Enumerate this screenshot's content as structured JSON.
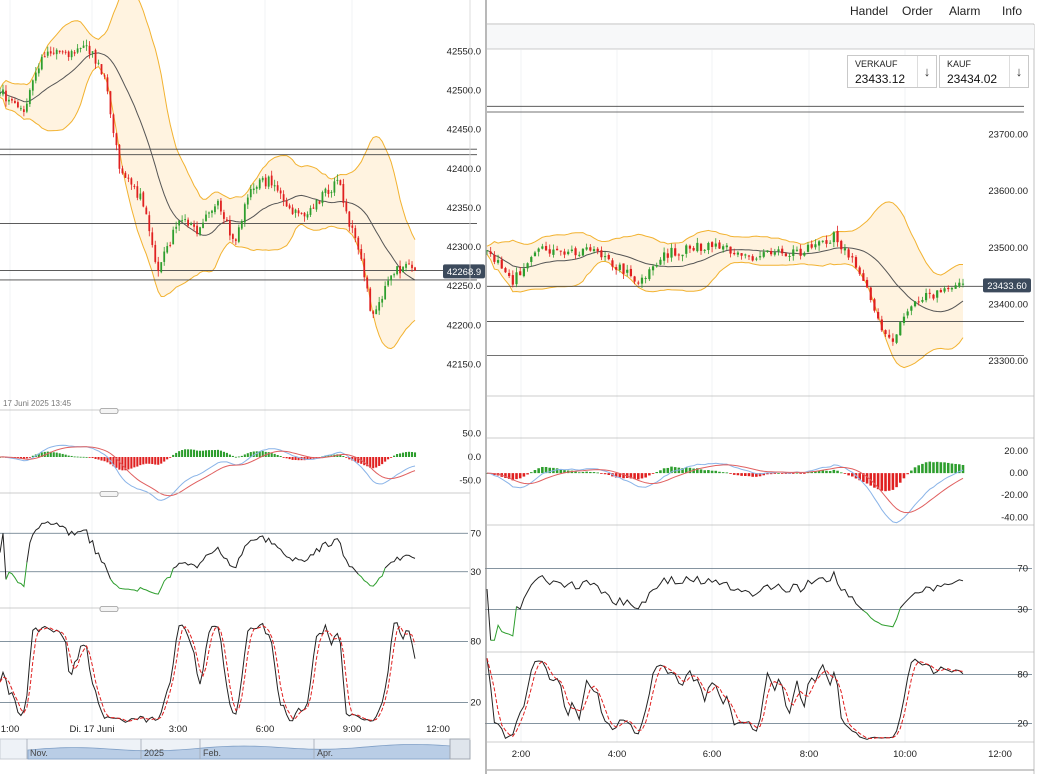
{
  "menu": {
    "trade": "Handel",
    "order": "Order",
    "alarm": "Alarm",
    "info": "Info"
  },
  "quotes": {
    "sell_label": "VERKAUF",
    "sell_value": "23433.12",
    "buy_label": "KAUF",
    "buy_value": "23434.02"
  },
  "colors": {
    "up": "#2e9e2e",
    "down": "#e02020",
    "band": "#f2b230",
    "band_fill": "#fff3e0",
    "ma": "#555555",
    "macd": "#8ab4e8",
    "signal": "#e06060",
    "price_tag": "#3c4a5c"
  },
  "chart_data": [
    {
      "type": "candlestick",
      "panel": "left-price",
      "title": "",
      "timestamp_label": "17 Juni 2025 13:45",
      "y_ticks": [
        "42550.0",
        "42500.0",
        "42450.0",
        "42400.0",
        "42350.0",
        "42300.0",
        "42250.0",
        "42200.0",
        "42150.0"
      ],
      "ylim": [
        42120,
        42590
      ],
      "current_price": "42268.9",
      "horizontal_levels": [
        42425,
        42418,
        42330,
        42270,
        42258
      ],
      "indicators": [
        "bollinger-bands",
        "moving-average"
      ],
      "close_path": [
        [
          0,
          42500
        ],
        [
          4,
          42470
        ],
        [
          8,
          42550
        ],
        [
          12,
          42545
        ],
        [
          16,
          42555
        ],
        [
          19,
          42520
        ],
        [
          22,
          42400
        ],
        [
          26,
          42360
        ],
        [
          29,
          42270
        ],
        [
          33,
          42340
        ],
        [
          36,
          42320
        ],
        [
          40,
          42360
        ],
        [
          43,
          42300
        ],
        [
          46,
          42380
        ],
        [
          50,
          42385
        ],
        [
          53,
          42350
        ],
        [
          56,
          42340
        ],
        [
          59,
          42365
        ],
        [
          62,
          42385
        ],
        [
          64,
          42330
        ],
        [
          66,
          42295
        ],
        [
          68,
          42215
        ],
        [
          70,
          42235
        ],
        [
          72,
          42270
        ],
        [
          75,
          42275
        ],
        [
          76,
          42270
        ]
      ]
    },
    {
      "type": "candlestick",
      "panel": "right-price",
      "title": "",
      "y_ticks": [
        "23700.00",
        "23600.00",
        "23500.00",
        "23400.00",
        "23300.00"
      ],
      "ylim": [
        23240,
        23770
      ],
      "current_price": "23433.60",
      "horizontal_levels": [
        23750,
        23740,
        23432,
        23370,
        23310
      ],
      "indicators": [
        "bollinger-bands",
        "moving-average"
      ],
      "close_path": [
        [
          0,
          23500
        ],
        [
          4,
          23440
        ],
        [
          8,
          23500
        ],
        [
          12,
          23490
        ],
        [
          16,
          23500
        ],
        [
          20,
          23470
        ],
        [
          24,
          23440
        ],
        [
          28,
          23490
        ],
        [
          32,
          23500
        ],
        [
          36,
          23505
        ],
        [
          40,
          23480
        ],
        [
          44,
          23495
        ],
        [
          48,
          23490
        ],
        [
          52,
          23510
        ],
        [
          54,
          23520
        ],
        [
          57,
          23480
        ],
        [
          59,
          23440
        ],
        [
          61,
          23360
        ],
        [
          63,
          23340
        ],
        [
          65,
          23380
        ],
        [
          67,
          23410
        ],
        [
          70,
          23420
        ],
        [
          72,
          23430
        ],
        [
          74,
          23432
        ]
      ]
    },
    {
      "type": "macd",
      "panel": "left-macd",
      "y_ticks": [
        "50.0",
        "0.0",
        "-50.0"
      ],
      "ylim": [
        -70,
        70
      ]
    },
    {
      "type": "macd",
      "panel": "right-macd",
      "y_ticks": [
        "20.00",
        "0.00",
        "-20.00",
        "-40.00"
      ],
      "ylim": [
        -47,
        30
      ]
    },
    {
      "type": "line",
      "panel": "left-rsi",
      "y_ticks": [
        "70",
        "30"
      ],
      "ylim": [
        10,
        90
      ]
    },
    {
      "type": "line",
      "panel": "right-rsi",
      "y_ticks": [
        "70",
        "30"
      ],
      "ylim": [
        10,
        90
      ]
    },
    {
      "type": "line",
      "panel": "left-stochastic",
      "y_ticks": [
        "80",
        "20"
      ],
      "ylim": [
        0,
        100
      ]
    },
    {
      "type": "line",
      "panel": "right-stochastic",
      "y_ticks": [
        "80",
        "20"
      ],
      "ylim": [
        0,
        100
      ]
    },
    {
      "type": "axis",
      "panel": "left-time",
      "x_ticks": [
        "1:00",
        "Di. 17 Juni",
        "3:00",
        "6:00",
        "9:00",
        "12:00"
      ],
      "navigator_labels": [
        "Nov.",
        "2025",
        "Feb.",
        "Apr."
      ]
    },
    {
      "type": "axis",
      "panel": "right-time",
      "x_ticks": [
        "2:00",
        "4:00",
        "6:00",
        "8:00",
        "10:00",
        "12:00"
      ]
    }
  ]
}
